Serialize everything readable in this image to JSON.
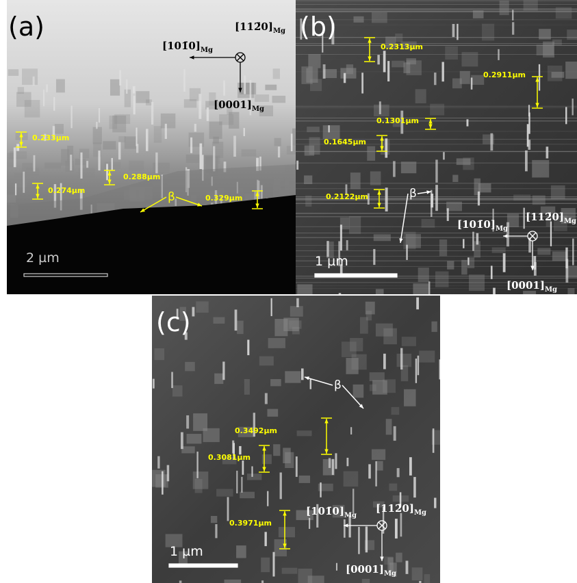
{
  "panels": [
    {
      "label": "(a)",
      "scale_bar": "2  µm",
      "beta": "β",
      "measurements": [
        "0.233µm",
        "0.288µm",
        "0.274µm",
        "0.329µm"
      ],
      "directions": [
        {
          "index": "[101̄0]",
          "sub": "Mg"
        },
        {
          "index": "[112̄0]",
          "sub": "Mg"
        },
        {
          "index": "[0001]",
          "sub": "Mg"
        }
      ]
    },
    {
      "label": "(b)",
      "scale_bar": "1  µm",
      "beta": "β",
      "measurements": [
        "0.2313µm",
        "0.2911µm",
        "0.1301µm",
        "0.1645µm",
        "0.2122µm"
      ],
      "directions": [
        {
          "index": "[101̄0]",
          "sub": "Mg"
        },
        {
          "index": "[112̄0]",
          "sub": "Mg"
        },
        {
          "index": "[0001]",
          "sub": "Mg"
        }
      ]
    },
    {
      "label": "(c)",
      "scale_bar": "1 µm",
      "beta": "β",
      "measurements": [
        "0.3492µm",
        "0.3081µm",
        "0.3971µm"
      ],
      "directions": [
        {
          "index": "[101̄0]",
          "sub": "Mg"
        },
        {
          "index": "[112̄0]",
          "sub": "Mg"
        },
        {
          "index": "[0001]",
          "sub": "Mg"
        }
      ]
    }
  ]
}
